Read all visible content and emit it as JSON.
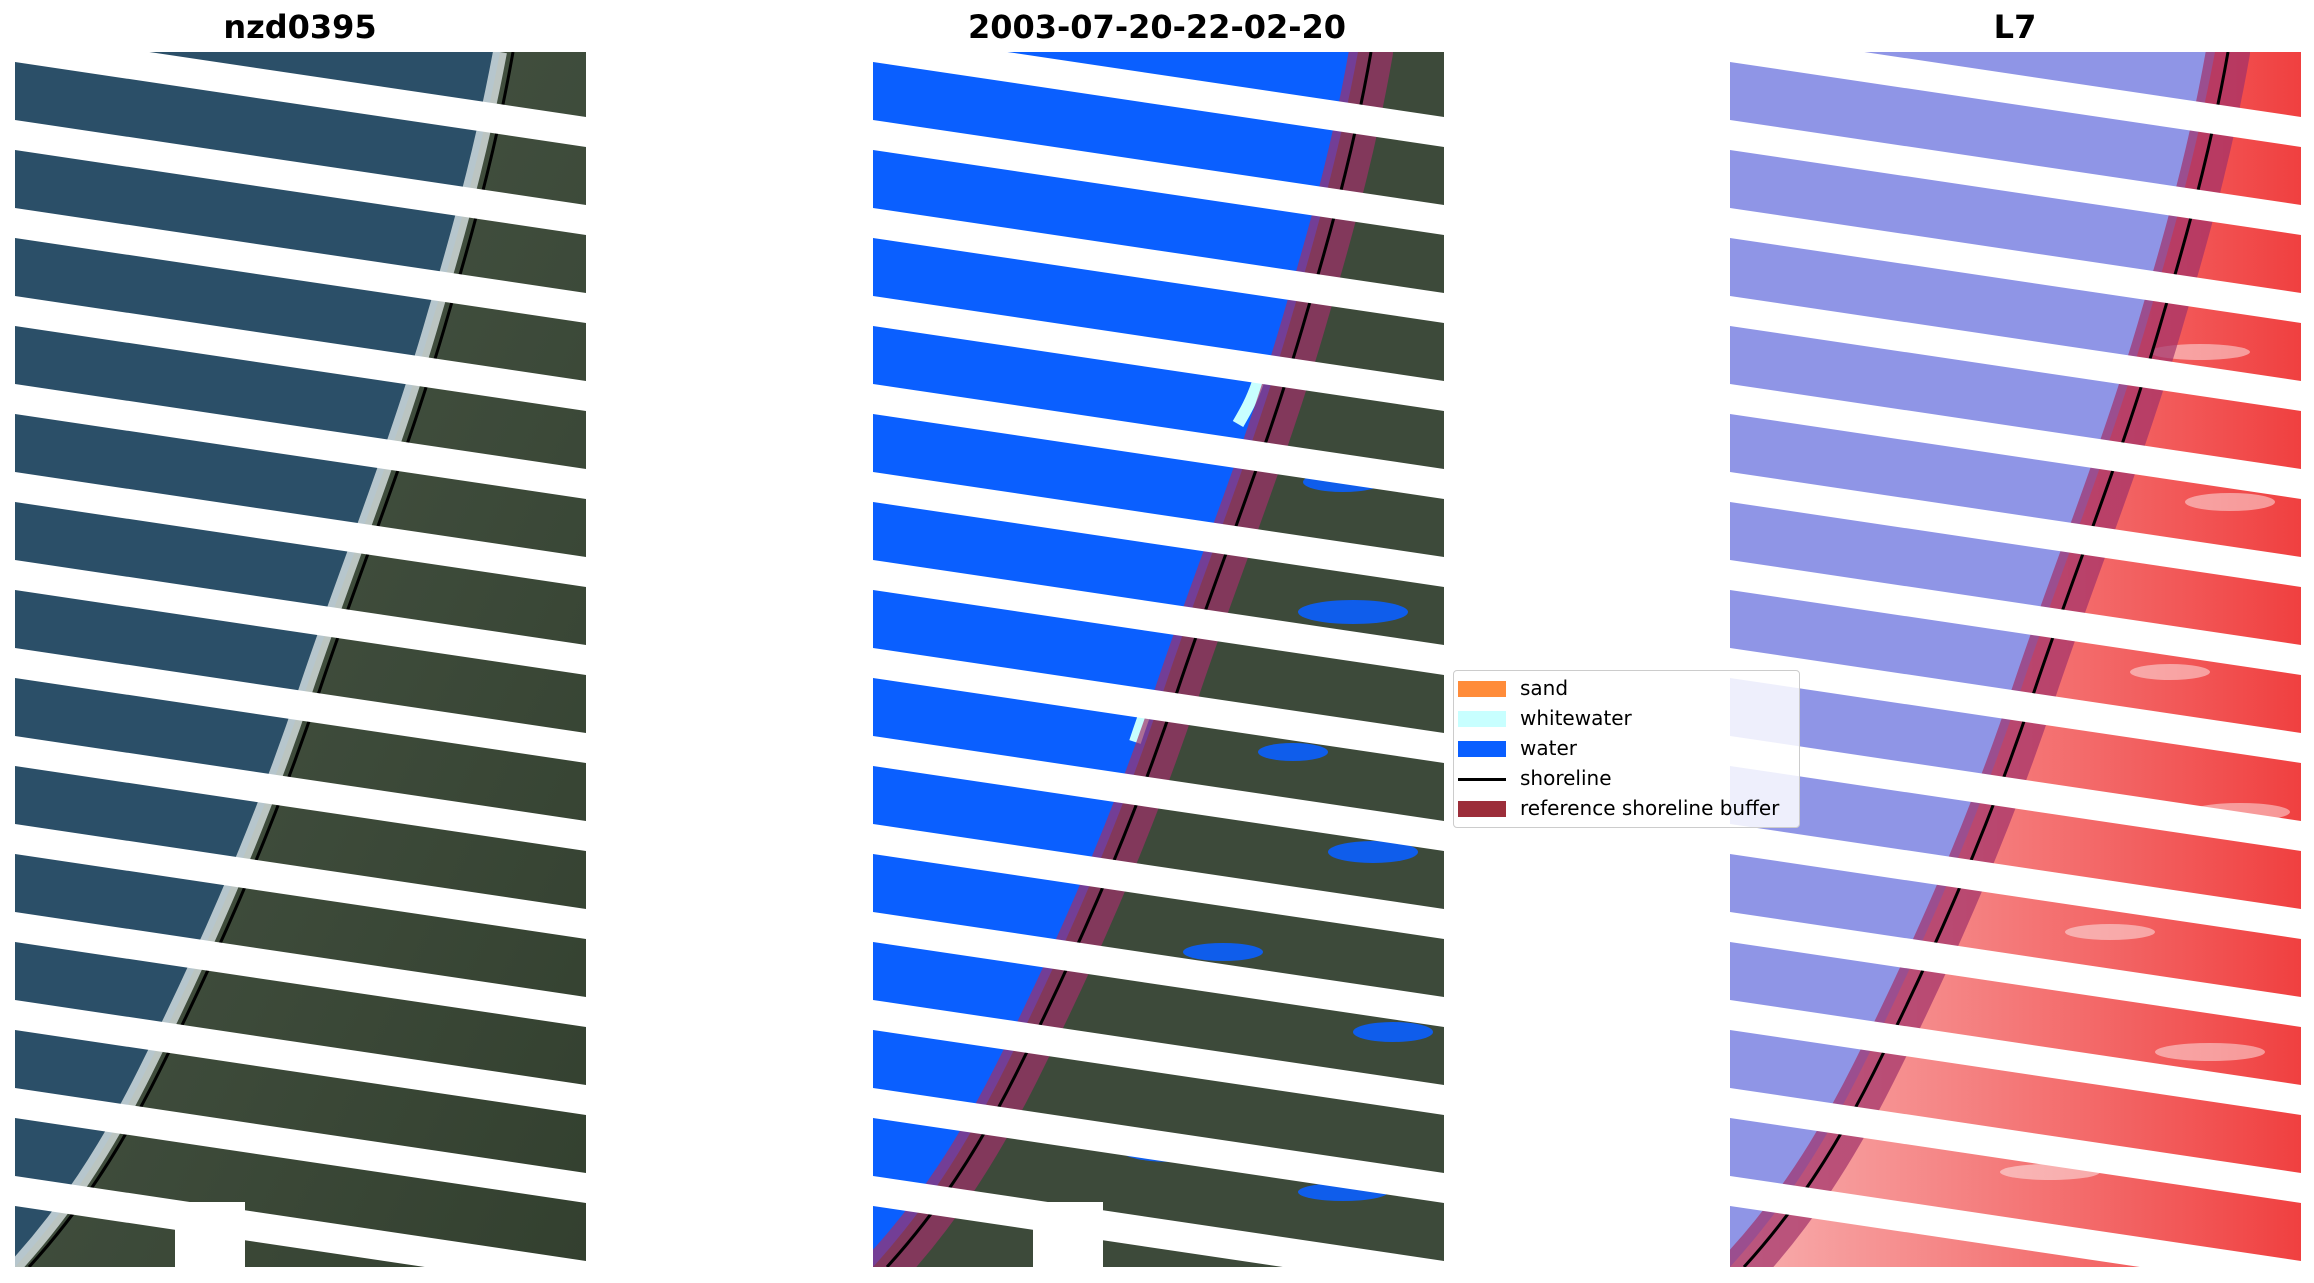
{
  "panels": [
    {
      "title": "nzd0395"
    },
    {
      "title": "2003-07-20-22-02-20"
    },
    {
      "title": "L7"
    }
  ],
  "legend": {
    "items": [
      {
        "label": "sand",
        "color": "#ff8c3a"
      },
      {
        "label": "whitewater",
        "color": "#c8ffff"
      },
      {
        "label": "water",
        "color": "#0a5fff"
      },
      {
        "label": "shoreline",
        "color": "#000000"
      },
      {
        "label": "reference shoreline buffer",
        "color": "#9c2e3a"
      }
    ]
  },
  "colors": {
    "ocean": "#2b4f68",
    "land": "#3d4a3a",
    "surf": "#e8eef0",
    "water_class": "#0a5fff",
    "buffer": "#a0306a",
    "mndwi_water": "#8f95e6",
    "mndwi_land": "#f04040"
  },
  "icons": []
}
